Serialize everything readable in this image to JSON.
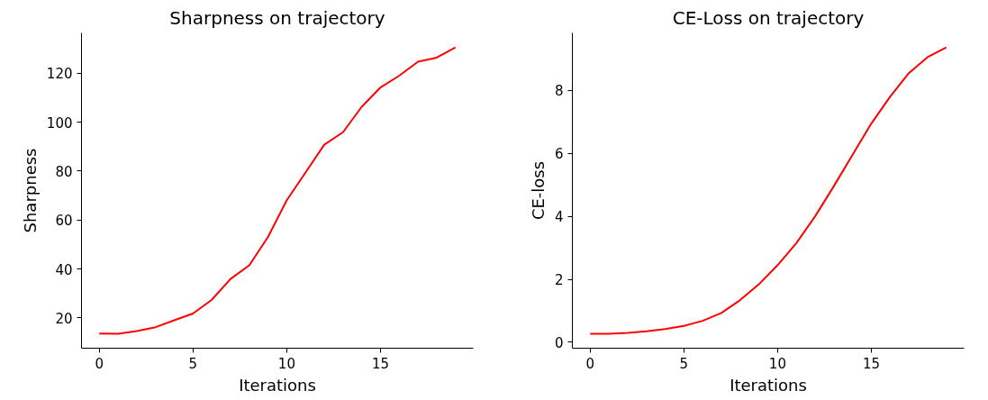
{
  "chart_data": [
    {
      "type": "line",
      "title": "Sharpness on trajectory",
      "xlabel": "Iterations",
      "ylabel": "Sharpness",
      "x": [
        0,
        1,
        2,
        3,
        4,
        5,
        6,
        7,
        8,
        9,
        10,
        11,
        12,
        13,
        14,
        15,
        16,
        17,
        18,
        19
      ],
      "series": [
        {
          "color": "#ff0000",
          "values": [
            13.6,
            13.5,
            14.6,
            16.2,
            19.0,
            21.8,
            27.4,
            35.9,
            41.5,
            53.1,
            68.1,
            79.4,
            90.8,
            95.9,
            106.3,
            114.2,
            119.0,
            124.7,
            126.4,
            130.6
          ]
        }
      ],
      "xlim": [
        -0.95,
        19.95
      ],
      "ylim": [
        7.6,
        136.5
      ],
      "xticks": [
        0,
        5,
        10,
        15
      ],
      "yticks": [
        20,
        40,
        60,
        80,
        100,
        120
      ],
      "grid": false,
      "marker": "none",
      "line_style": "solid"
    },
    {
      "type": "line",
      "title": "CE-Loss on trajectory",
      "xlabel": "Iterations",
      "ylabel": "CE-loss",
      "x": [
        0,
        1,
        2,
        3,
        4,
        5,
        6,
        7,
        8,
        9,
        10,
        11,
        12,
        13,
        14,
        15,
        16,
        17,
        18,
        19
      ],
      "series": [
        {
          "color": "#ff0000",
          "values": [
            0.27,
            0.27,
            0.3,
            0.35,
            0.42,
            0.52,
            0.68,
            0.93,
            1.34,
            1.84,
            2.45,
            3.15,
            4.0,
            4.96,
            5.96,
            6.95,
            7.8,
            8.55,
            9.06,
            9.37
          ]
        }
      ],
      "xlim": [
        -0.95,
        19.95
      ],
      "ylim": [
        -0.19,
        9.83
      ],
      "xticks": [
        0,
        5,
        10,
        15
      ],
      "yticks": [
        0,
        2,
        4,
        6,
        8
      ],
      "grid": false,
      "marker": "none",
      "line_style": "solid"
    }
  ]
}
